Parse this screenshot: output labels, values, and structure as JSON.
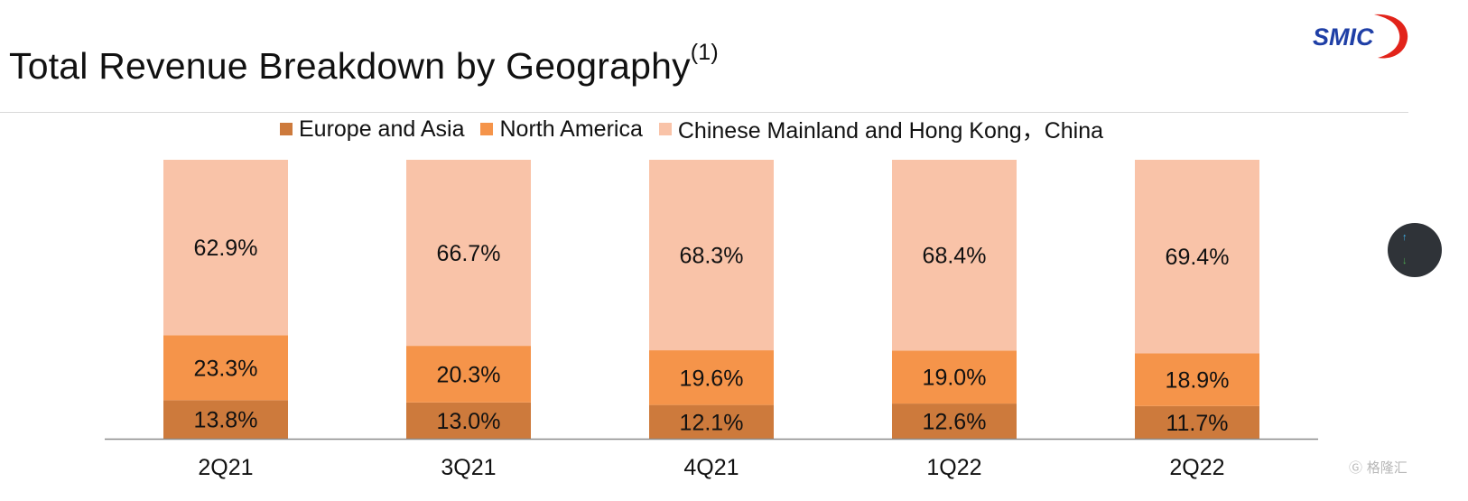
{
  "title": "Total Revenue Breakdown by Geography",
  "title_footnote": "(1)",
  "logo_text": "SMIC",
  "watermark_text": "格隆汇",
  "colors": {
    "europe_asia": "#cd7a3c",
    "north_america": "#f5944a",
    "china": "#f9c3a8",
    "axis": "#8c8c8c",
    "logo_blue": "#1f3fa6",
    "logo_red": "#e2231a"
  },
  "chart_data": {
    "type": "bar",
    "stacked": true,
    "categories": [
      "2Q21",
      "3Q21",
      "4Q21",
      "1Q22",
      "2Q22"
    ],
    "series": [
      {
        "name": "Europe and Asia",
        "values": [
          13.8,
          13.0,
          12.1,
          12.6,
          11.7
        ],
        "labels": [
          "13.8%",
          "13.0%",
          "12.1%",
          "12.6%",
          "11.7%"
        ]
      },
      {
        "name": "North America",
        "values": [
          23.3,
          20.3,
          19.6,
          19.0,
          18.9
        ],
        "labels": [
          "23.3%",
          "20.3%",
          "19.6%",
          "19.0%",
          "18.9%"
        ]
      },
      {
        "name": "Chinese Mainland and Hong Kong，China",
        "values": [
          62.9,
          66.7,
          68.3,
          68.4,
          69.4
        ],
        "labels": [
          "62.9%",
          "66.7%",
          "68.3%",
          "68.4%",
          "69.4%"
        ]
      }
    ],
    "ylim": [
      0,
      100
    ],
    "legend_position": "top",
    "grid": false
  }
}
